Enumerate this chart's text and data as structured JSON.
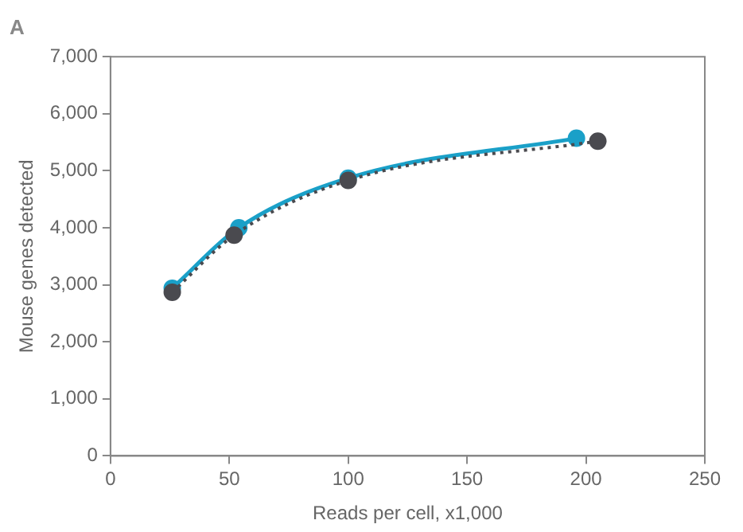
{
  "chart_data": {
    "type": "line",
    "title": "A",
    "xlabel": "Reads per cell, x1,000",
    "ylabel": "Mouse genes detected",
    "xlim": [
      0,
      250
    ],
    "xticks": [
      0,
      50,
      100,
      150,
      200,
      250
    ],
    "ylim": [
      0,
      7000
    ],
    "yticks": [
      {
        "value": 0,
        "label": "0"
      },
      {
        "value": 1000,
        "label": "1,000"
      },
      {
        "value": 2000,
        "label": "2,000"
      },
      {
        "value": 3000,
        "label": "3,000"
      },
      {
        "value": 4000,
        "label": "4,000"
      },
      {
        "value": 5000,
        "label": "5,000"
      },
      {
        "value": 6000,
        "label": "6,000"
      },
      {
        "value": 7000,
        "label": "7,000"
      }
    ],
    "grid": false,
    "legend": false,
    "marker": "circle",
    "series": [
      {
        "color": "#1aa0c8",
        "line_style": "solid",
        "x": [
          26,
          54,
          100,
          196
        ],
        "values": [
          2940,
          4000,
          4870,
          5570
        ]
      },
      {
        "color": "#4a4a4f",
        "line_style": "dotted",
        "x": [
          26,
          52,
          100,
          205
        ],
        "values": [
          2870,
          3870,
          4830,
          5520
        ]
      }
    ]
  }
}
